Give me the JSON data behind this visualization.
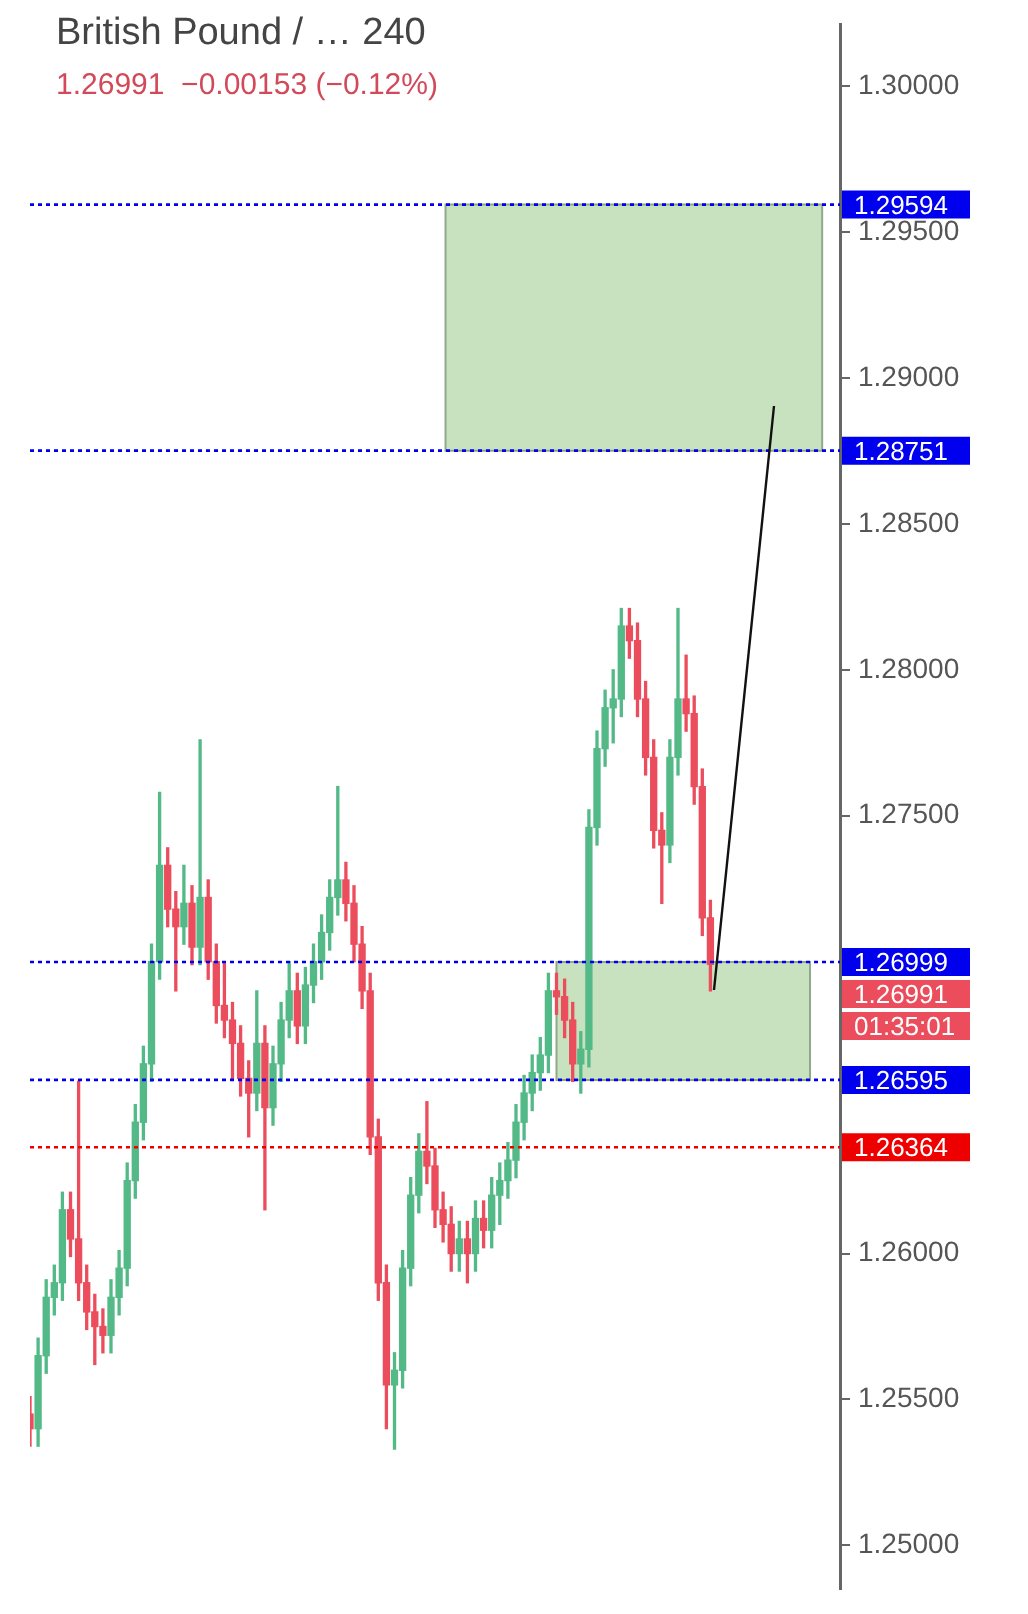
{
  "chart_data": {
    "type": "candlestick",
    "title": "British Pound / …  240",
    "subtitle": "1.26991  −0.00153 (−0.12%)",
    "categories": [
      null,
      null,
      null,
      null,
      null,
      null,
      null,
      null,
      null,
      null,
      null,
      null,
      null,
      null,
      null,
      null,
      null,
      null,
      null,
      null,
      null,
      null,
      null,
      null,
      null,
      null,
      null,
      null,
      null,
      null,
      null,
      null,
      null,
      null,
      null,
      null,
      null,
      null,
      null,
      null,
      null,
      null,
      null,
      null,
      null,
      null,
      null,
      null,
      null,
      null,
      null,
      null,
      null,
      null,
      null,
      null,
      null,
      null,
      null,
      null,
      null,
      null,
      null,
      null,
      null,
      null,
      null,
      null,
      null,
      null,
      null,
      null,
      null,
      null,
      null,
      null,
      null,
      null,
      null,
      null,
      null,
      null,
      null,
      null,
      null,
      null,
      null,
      null,
      null,
      null,
      null,
      null,
      null,
      null,
      null,
      null,
      null,
      null,
      null,
      null,
      null
    ],
    "ohlc": [
      [
        1.2545,
        1.2551,
        1.2534,
        1.254
      ],
      [
        1.254,
        1.2571,
        1.2534,
        1.2565
      ],
      [
        1.2565,
        1.2591,
        1.2559,
        1.2585
      ],
      [
        1.2585,
        1.2596,
        1.2579,
        1.259
      ],
      [
        1.259,
        1.2621,
        1.2584,
        1.2615
      ],
      [
        1.2615,
        1.2621,
        1.2599,
        1.2605
      ],
      [
        1.2605,
        1.2659,
        1.2584,
        1.259
      ],
      [
        1.259,
        1.2596,
        1.2574,
        1.258
      ],
      [
        1.258,
        1.2586,
        1.2562,
        1.2575
      ],
      [
        1.2575,
        1.2581,
        1.2566,
        1.2572
      ],
      [
        1.2572,
        1.2591,
        1.2566,
        1.2585
      ],
      [
        1.2585,
        1.2601,
        1.2579,
        1.2595
      ],
      [
        1.2595,
        1.2631,
        1.2589,
        1.2625
      ],
      [
        1.2625,
        1.2651,
        1.2619,
        1.2645
      ],
      [
        1.2645,
        1.2671,
        1.2639,
        1.2665
      ],
      [
        1.2665,
        1.2706,
        1.2659,
        1.27
      ],
      [
        1.27,
        1.2758,
        1.2694,
        1.2733
      ],
      [
        1.2733,
        1.2739,
        1.2712,
        1.2718
      ],
      [
        1.2718,
        1.2724,
        1.269,
        1.2712
      ],
      [
        1.2712,
        1.2733,
        1.2706,
        1.272
      ],
      [
        1.272,
        1.2726,
        1.2699,
        1.2705
      ],
      [
        1.2705,
        1.2776,
        1.2699,
        1.2722
      ],
      [
        1.2722,
        1.2728,
        1.2694,
        1.27
      ],
      [
        1.27,
        1.2706,
        1.2679,
        1.2685
      ],
      [
        1.2685,
        1.27,
        1.2674,
        1.268
      ],
      [
        1.268,
        1.2686,
        1.266,
        1.2672
      ],
      [
        1.2672,
        1.2678,
        1.2654,
        1.266
      ],
      [
        1.266,
        1.2666,
        1.264,
        1.2655
      ],
      [
        1.2655,
        1.269,
        1.2649,
        1.2672
      ],
      [
        1.2672,
        1.2678,
        1.2615,
        1.265
      ],
      [
        1.265,
        1.2671,
        1.2644,
        1.2665
      ],
      [
        1.2665,
        1.2686,
        1.2659,
        1.268
      ],
      [
        1.268,
        1.27,
        1.2674,
        1.269
      ],
      [
        1.269,
        1.2696,
        1.2672,
        1.2678
      ],
      [
        1.2678,
        1.2698,
        1.2672,
        1.2692
      ],
      [
        1.2692,
        1.2706,
        1.2686,
        1.27
      ],
      [
        1.27,
        1.2716,
        1.2694,
        1.271
      ],
      [
        1.271,
        1.2728,
        1.2704,
        1.2722
      ],
      [
        1.2722,
        1.276,
        1.2716,
        1.2728
      ],
      [
        1.2728,
        1.2734,
        1.2714,
        1.272
      ],
      [
        1.272,
        1.2726,
        1.27,
        1.2706
      ],
      [
        1.2706,
        1.2712,
        1.2684,
        1.269
      ],
      [
        1.269,
        1.2696,
        1.2634,
        1.264
      ],
      [
        1.264,
        1.2646,
        1.2584,
        1.259
      ],
      [
        1.259,
        1.2596,
        1.254,
        1.2555
      ],
      [
        1.2555,
        1.2566,
        1.2533,
        1.256
      ],
      [
        1.256,
        1.2601,
        1.2554,
        1.2595
      ],
      [
        1.2595,
        1.2626,
        1.2589,
        1.262
      ],
      [
        1.262,
        1.2641,
        1.2614,
        1.2635
      ],
      [
        1.2635,
        1.2652,
        1.2624,
        1.263
      ],
      [
        1.263,
        1.2636,
        1.2609,
        1.2615
      ],
      [
        1.2615,
        1.2621,
        1.2604,
        1.261
      ],
      [
        1.261,
        1.2616,
        1.2594,
        1.26
      ],
      [
        1.26,
        1.2611,
        1.2594,
        1.2605
      ],
      [
        1.2605,
        1.2611,
        1.259,
        1.26
      ],
      [
        1.26,
        1.2618,
        1.2594,
        1.2612
      ],
      [
        1.2612,
        1.2618,
        1.2602,
        1.2608
      ],
      [
        1.2608,
        1.2626,
        1.2602,
        1.262
      ],
      [
        1.262,
        1.2631,
        1.261,
        1.2625
      ],
      [
        1.2625,
        1.2638,
        1.2619,
        1.2632
      ],
      [
        1.2632,
        1.2651,
        1.2626,
        1.2645
      ],
      [
        1.2645,
        1.2661,
        1.2639,
        1.2655
      ],
      [
        1.2655,
        1.2668,
        1.2649,
        1.2662
      ],
      [
        1.2662,
        1.2674,
        1.2656,
        1.2668
      ],
      [
        1.2668,
        1.2696,
        1.2662,
        1.269
      ],
      [
        1.269,
        1.2696,
        1.2682,
        1.2688
      ],
      [
        1.2688,
        1.2694,
        1.2674,
        1.268
      ],
      [
        1.268,
        1.2686,
        1.2659,
        1.2665
      ],
      [
        1.2665,
        1.2676,
        1.2655,
        1.267
      ],
      [
        1.267,
        1.2752,
        1.2664,
        1.2746
      ],
      [
        1.2746,
        1.2779,
        1.274,
        1.2773
      ],
      [
        1.2773,
        1.2793,
        1.2767,
        1.2787
      ],
      [
        1.2787,
        1.28,
        1.2775,
        1.279
      ],
      [
        1.279,
        1.2821,
        1.2784,
        1.2815
      ],
      [
        1.2815,
        1.2821,
        1.2804,
        1.281
      ],
      [
        1.281,
        1.2816,
        1.2784,
        1.279
      ],
      [
        1.279,
        1.2796,
        1.2764,
        1.277
      ],
      [
        1.277,
        1.2776,
        1.2739,
        1.2745
      ],
      [
        1.2745,
        1.2751,
        1.272,
        1.274
      ],
      [
        1.274,
        1.2776,
        1.2734,
        1.277
      ],
      [
        1.277,
        1.2821,
        1.2764,
        1.279
      ],
      [
        1.279,
        1.2805,
        1.2779,
        1.2785
      ],
      [
        1.2785,
        1.2791,
        1.2754,
        1.276
      ],
      [
        1.276,
        1.2766,
        1.2709,
        1.2715
      ],
      [
        1.2715,
        1.2721,
        1.269,
        1.26991
      ],
      null,
      null,
      null,
      null,
      null,
      null,
      null,
      null,
      null,
      null,
      null,
      null,
      null,
      null,
      null,
      null
    ],
    "colors": [
      "#eb4d5c",
      "#53b987",
      "#53b987",
      "#53b987",
      "#53b987",
      "#eb4d5c",
      "#eb4d5c",
      "#eb4d5c",
      "#eb4d5c",
      "#eb4d5c",
      "#53b987",
      "#53b987",
      "#53b987",
      "#53b987",
      "#53b987",
      "#53b987",
      "#53b987",
      "#eb4d5c",
      "#eb4d5c",
      "#53b987",
      "#eb4d5c",
      "#53b987",
      "#eb4d5c",
      "#eb4d5c",
      "#eb4d5c",
      "#eb4d5c",
      "#eb4d5c",
      "#eb4d5c",
      "#53b987",
      "#eb4d5c",
      "#53b987",
      "#53b987",
      "#53b987",
      "#eb4d5c",
      "#53b987",
      "#53b987",
      "#53b987",
      "#53b987",
      "#53b987",
      "#eb4d5c",
      "#eb4d5c",
      "#eb4d5c",
      "#eb4d5c",
      "#eb4d5c",
      "#eb4d5c",
      "#53b987",
      "#53b987",
      "#53b987",
      "#53b987",
      "#eb4d5c",
      "#eb4d5c",
      "#eb4d5c",
      "#eb4d5c",
      "#53b987",
      "#eb4d5c",
      "#53b987",
      "#eb4d5c",
      "#53b987",
      "#53b987",
      "#53b987",
      "#53b987",
      "#53b987",
      "#53b987",
      "#53b987",
      "#53b987",
      "#eb4d5c",
      "#eb4d5c",
      "#eb4d5c",
      "#53b987",
      "#53b987",
      "#53b987",
      "#53b987",
      "#53b987",
      "#53b987",
      "#eb4d5c",
      "#eb4d5c",
      "#eb4d5c",
      "#eb4d5c",
      "#eb4d5c",
      "#53b987",
      "#53b987",
      "#eb4d5c",
      "#eb4d5c",
      "#eb4d5c",
      "#eb4d5c",
      null,
      null,
      null,
      null,
      null,
      null,
      null,
      null,
      null,
      null,
      null,
      null,
      null,
      null,
      null,
      null
    ],
    "ylim": [
      1.2485,
      1.3021
    ],
    "yticks": [
      {
        "value": 1.25,
        "label": "1.25000"
      },
      {
        "value": 1.255,
        "label": "1.25500"
      },
      {
        "value": 1.26,
        "label": "1.26000"
      },
      {
        "value": 1.275,
        "label": "1.27500"
      },
      {
        "value": 1.28,
        "label": "1.28000"
      },
      {
        "value": 1.285,
        "label": "1.28500"
      },
      {
        "value": 1.29,
        "label": "1.29000"
      },
      {
        "value": 1.295,
        "label": "1.29500"
      },
      {
        "value": 1.3,
        "label": "1.30000"
      }
    ],
    "tick_labels": "y",
    "grid": false,
    "legend": false,
    "bands": [
      {
        "axis": "y",
        "from": 1.28751,
        "to": 1.29594,
        "color": "#c8e2bf"
      },
      {
        "axis": "y",
        "from": 1.26595,
        "to": 1.26999,
        "color": "#c8e2bf"
      }
    ],
    "ref_lines": [
      {
        "axis": "y",
        "value": 1.29594,
        "label": "1.29594",
        "color": "#0000ee",
        "line_style": "dotted"
      },
      {
        "axis": "y",
        "value": 1.28751,
        "label": "1.28751",
        "color": "#0000ee",
        "line_style": "dotted"
      },
      {
        "axis": "y",
        "value": 1.26999,
        "label": "1.26999",
        "color": "#0000ee",
        "line_style": "dotted"
      },
      {
        "axis": "y",
        "value": 1.26595,
        "label": "1.26595",
        "color": "#0000ee",
        "line_style": "dotted"
      },
      {
        "axis": "y",
        "value": 1.26364,
        "label": "1.26364",
        "color": "#ee0000",
        "line_style": "dotted"
      }
    ],
    "annotations": [
      "1.26991",
      "01:35:01"
    ]
  }
}
